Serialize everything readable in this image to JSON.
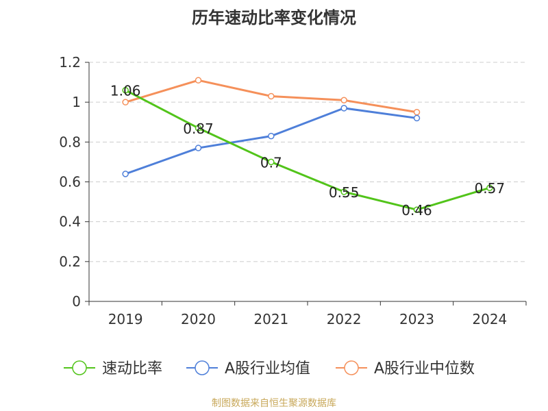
{
  "chart_data": {
    "type": "line",
    "title": "历年速动比率变化情况",
    "xlabel": "",
    "ylabel": "",
    "categories": [
      "2019",
      "2020",
      "2021",
      "2022",
      "2023",
      "2024"
    ],
    "ylim": [
      0,
      1.2
    ],
    "yticks": [
      "0",
      "0.2",
      "0.4",
      "0.6",
      "0.8",
      "1",
      "1.2"
    ],
    "grid": true,
    "legend_position": "bottom",
    "series": [
      {
        "name": "速动比率",
        "color": "#52c41a",
        "values": [
          1.06,
          0.87,
          0.7,
          0.55,
          0.46,
          0.57
        ],
        "data_labels": [
          "1.06",
          "0.87",
          "0.7",
          "0.55",
          "0.46",
          "0.57"
        ]
      },
      {
        "name": "A股行业均值",
        "color": "#4e7fd9",
        "values": [
          0.64,
          0.77,
          0.83,
          0.97,
          0.92,
          null
        ]
      },
      {
        "name": "A股行业中位数",
        "color": "#f5905a",
        "values": [
          1.0,
          1.11,
          1.03,
          1.01,
          0.95,
          null
        ]
      }
    ]
  },
  "source": "制图数据来自恒生聚源数据库"
}
